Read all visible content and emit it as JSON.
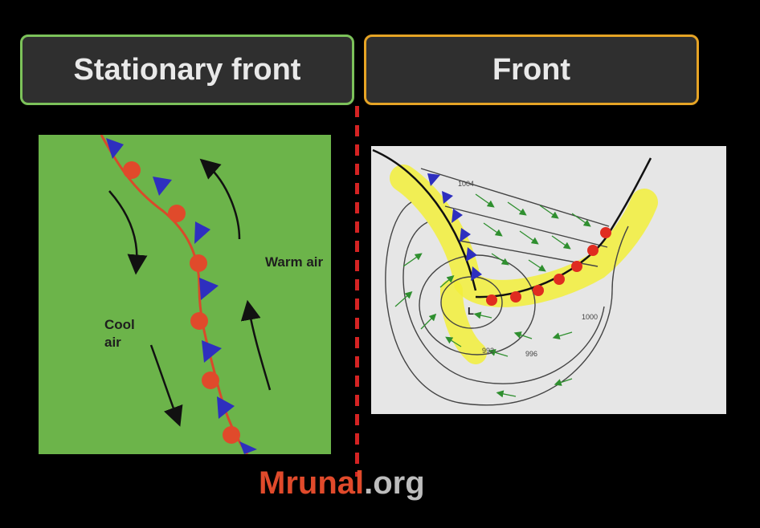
{
  "titles": {
    "left": "Stationary front",
    "right": "Front"
  },
  "left_panel": {
    "warm_label": "Warm air",
    "cool_label": "Cool air"
  },
  "right_panel": {
    "isobars": [
      "1004",
      "1000",
      "996",
      "992"
    ],
    "low_label": "L"
  },
  "brand": {
    "name": "Mrunal",
    "suffix": ".org"
  },
  "colors": {
    "left_border": "#7cc25a",
    "right_border": "#e6a425",
    "cold_front": "#2e2fbf",
    "warm_front": "#e02c20",
    "stationary_green": "#6cb44a",
    "occlusion_highlight": "#f2ee3a"
  }
}
